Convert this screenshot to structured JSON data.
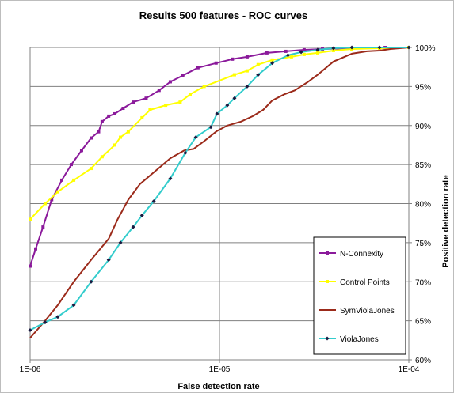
{
  "chart_data": {
    "type": "line",
    "title": "Results 500 features - ROC curves",
    "xlabel": "False detection rate",
    "ylabel": "Positive detection rate",
    "x_scale": "log",
    "xlim": [
      1e-06,
      0.0001
    ],
    "ylim": [
      60,
      100
    ],
    "x_ticks": [
      {
        "value": 1e-06,
        "label": "1E-06"
      },
      {
        "value": 1e-05,
        "label": "1E-05"
      },
      {
        "value": 0.0001,
        "label": "1E-04"
      }
    ],
    "y_ticks": [
      {
        "value": 60,
        "label": "60%"
      },
      {
        "value": 65,
        "label": "65%"
      },
      {
        "value": 70,
        "label": "70%"
      },
      {
        "value": 75,
        "label": "75%"
      },
      {
        "value": 80,
        "label": "80%"
      },
      {
        "value": 85,
        "label": "85%"
      },
      {
        "value": 90,
        "label": "90%"
      },
      {
        "value": 95,
        "label": "95%"
      },
      {
        "value": 100,
        "label": "100%"
      }
    ],
    "grid": "horizontal",
    "legend_position": "bottom-right",
    "series": [
      {
        "name": "N-Connexity",
        "color": "#8b1a9b",
        "marker": "square",
        "x": [
          1e-06,
          1.07e-06,
          1.17e-06,
          1.3e-06,
          1.47e-06,
          1.65e-06,
          1.87e-06,
          2.1e-06,
          2.3e-06,
          2.4e-06,
          2.6e-06,
          2.8e-06,
          3.1e-06,
          3.5e-06,
          4.1e-06,
          4.8e-06,
          5.5e-06,
          6.4e-06,
          7.7e-06,
          9.6e-06,
          1.17e-05,
          1.4e-05,
          1.78e-05,
          2.24e-05,
          2.8e-05,
          3.5e-05,
          5e-05,
          7.5e-05,
          0.0001
        ],
        "y": [
          72.0,
          74.2,
          77.0,
          80.5,
          83.0,
          85.0,
          86.8,
          88.4,
          89.2,
          90.5,
          91.2,
          91.5,
          92.2,
          93.0,
          93.5,
          94.5,
          95.6,
          96.4,
          97.4,
          98.0,
          98.5,
          98.8,
          99.3,
          99.5,
          99.7,
          99.8,
          99.9,
          100,
          100
        ]
      },
      {
        "name": "Control Points",
        "color": "#ffff00",
        "marker": "square",
        "x": [
          1e-06,
          1.2e-06,
          1.4e-06,
          1.7e-06,
          2.1e-06,
          2.4e-06,
          2.8e-06,
          3e-06,
          3.3e-06,
          3.9e-06,
          4.3e-06,
          5.2e-06,
          6.2e-06,
          7e-06,
          8.3e-06,
          1.2e-05,
          1.4e-05,
          1.6e-05,
          1.9e-05,
          2.4e-05,
          2.8e-05,
          3.3e-05,
          4e-05,
          5e-05,
          7e-05,
          0.0001
        ],
        "y": [
          78.0,
          80.0,
          81.5,
          83.0,
          84.5,
          86.0,
          87.5,
          88.5,
          89.2,
          91.0,
          92.0,
          92.6,
          93.0,
          94.0,
          95.0,
          96.5,
          97.0,
          97.8,
          98.4,
          98.8,
          99.1,
          99.3,
          99.6,
          99.8,
          99.9,
          100
        ]
      },
      {
        "name": "SymViolaJones",
        "color": "#9b2a1a",
        "marker": "none",
        "x": [
          1e-06,
          1.2e-06,
          1.4e-06,
          1.7e-06,
          2.1e-06,
          2.6e-06,
          2.9e-06,
          3.3e-06,
          3.8e-06,
          4.5e-06,
          5.5e-06,
          6.5e-06,
          7.3e-06,
          8.3e-06,
          9.7e-06,
          1.1e-05,
          1.3e-05,
          1.5e-05,
          1.7e-05,
          1.9e-05,
          2.2e-05,
          2.5e-05,
          2.9e-05,
          3.3e-05,
          4e-05,
          5e-05,
          6e-05,
          7e-05,
          8e-05,
          0.0001
        ],
        "y": [
          62.8,
          65.0,
          67.0,
          70.0,
          72.8,
          75.5,
          78.0,
          80.5,
          82.5,
          84.0,
          85.8,
          86.8,
          87.0,
          88.0,
          89.3,
          90.0,
          90.5,
          91.2,
          92.0,
          93.2,
          94.0,
          94.5,
          95.5,
          96.5,
          98.2,
          99.2,
          99.5,
          99.6,
          99.8,
          100
        ]
      },
      {
        "name": "ViolaJones",
        "color": "#33cccc",
        "marker": "diamond",
        "x": [
          1e-06,
          1.2e-06,
          1.4e-06,
          1.7e-06,
          2.1e-06,
          2.6e-06,
          3e-06,
          3.5e-06,
          3.9e-06,
          4.5e-06,
          5.5e-06,
          6.6e-06,
          7.5e-06,
          9e-06,
          9.7e-06,
          1.1e-05,
          1.2e-05,
          1.4e-05,
          1.6e-05,
          1.9e-05,
          2.3e-05,
          2.7e-05,
          3.3e-05,
          4e-05,
          5e-05,
          7e-05,
          0.0001
        ],
        "y": [
          63.8,
          64.8,
          65.5,
          67.0,
          70.0,
          72.8,
          75.0,
          77.0,
          78.5,
          80.3,
          83.2,
          86.5,
          88.5,
          89.8,
          91.5,
          92.6,
          93.5,
          95.0,
          96.5,
          98.0,
          99.0,
          99.4,
          99.7,
          99.9,
          100,
          100,
          100
        ]
      }
    ]
  }
}
